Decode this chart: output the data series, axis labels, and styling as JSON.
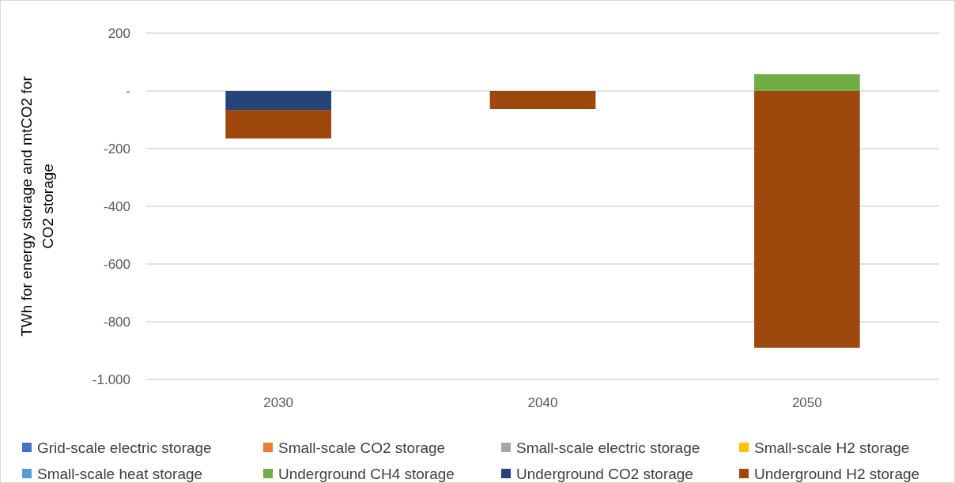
{
  "chart_data": {
    "type": "bar",
    "stacked": true,
    "ylabel": "TWh for energy storage and mtCO2 for CO2 storage",
    "categories": [
      "2030",
      "2040",
      "2050"
    ],
    "series": [
      {
        "name": "Grid-scale electric storage",
        "color": "#4472c4",
        "values": [
          0,
          0,
          0
        ]
      },
      {
        "name": "Small-scale CO2 storage",
        "color": "#ed7d31",
        "values": [
          0,
          0,
          0
        ]
      },
      {
        "name": "Small-scale electric storage",
        "color": "#a5a5a5",
        "values": [
          0,
          0,
          0
        ]
      },
      {
        "name": "Small-scale H2 storage",
        "color": "#ffc000",
        "values": [
          0,
          0,
          0
        ]
      },
      {
        "name": "Small-scale heat storage",
        "color": "#5b9bd5",
        "values": [
          0,
          0,
          0
        ]
      },
      {
        "name": "Underground CH4 storage",
        "color": "#70ad47",
        "values": [
          0,
          0,
          58
        ]
      },
      {
        "name": "Underground CO2 storage",
        "color": "#264478",
        "values": [
          -66,
          0,
          0
        ]
      },
      {
        "name": "Underground H2 storage",
        "color": "#9e480e",
        "values": [
          -99,
          -63,
          -890
        ]
      }
    ],
    "ylim": [
      -1000,
      200
    ],
    "yticks": [
      200,
      {
        "value": 0,
        "label": "-"
      },
      -200,
      -400,
      -600,
      -800,
      {
        "value": -1000,
        "label": "-1.000"
      }
    ],
    "grid": "y",
    "legend": "bottom"
  }
}
